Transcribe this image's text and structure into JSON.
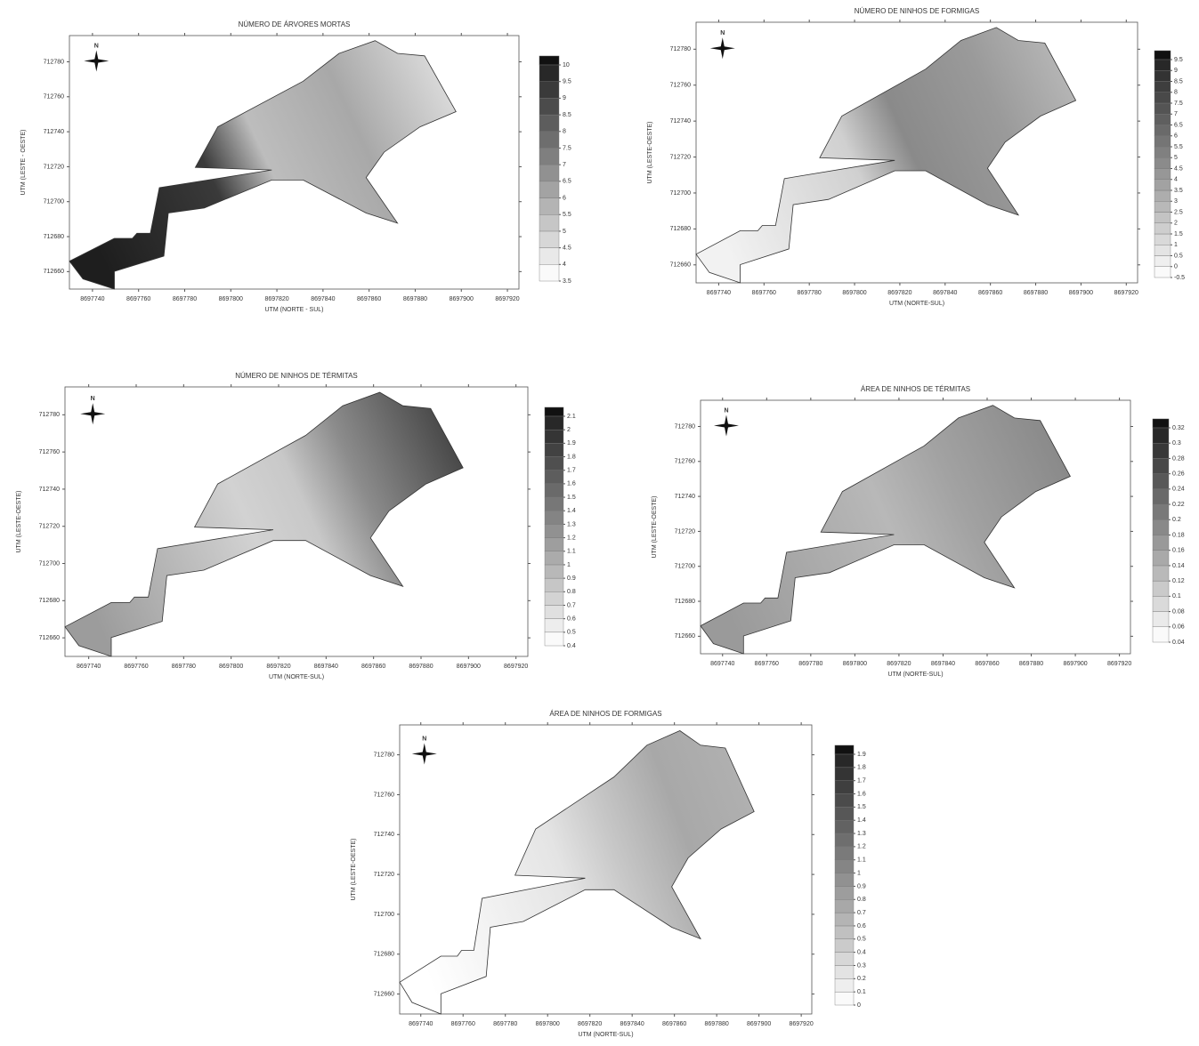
{
  "chart_data": [
    {
      "type": "contour",
      "title": "NÚMERO DE ÁRVORES MORTAS",
      "compass_label": "N",
      "x_label": "UTM (NORTE - SUL)",
      "y_label": "UTM (LESTE - OESTE)",
      "xlim": [
        8697730,
        8697925
      ],
      "ylim": [
        712650,
        712795
      ],
      "xticks": [
        8697740,
        8697760,
        8697780,
        8697800,
        8697820,
        8697840,
        8697860,
        8697880,
        8697900,
        8697920
      ],
      "yticks": [
        712660,
        712680,
        712700,
        712720,
        712740,
        712760,
        712780
      ],
      "levels": [
        3.5,
        4,
        4.5,
        5,
        5.5,
        6,
        6.5,
        7,
        7.5,
        8,
        8.5,
        9,
        9.5,
        10
      ]
    },
    {
      "type": "contour",
      "title": "NÚMERO DE NINHOS DE FORMIGAS",
      "compass_label": "N",
      "x_label": "UTM (NORTE-SUL)",
      "y_label": "UTM (LESTE-OESTE)",
      "xlim": [
        8697730,
        8697925
      ],
      "ylim": [
        712650,
        712795
      ],
      "xticks": [
        8697740,
        8697760,
        8697780,
        8697800,
        8697820,
        8697840,
        8697860,
        8697880,
        8697900,
        8697920
      ],
      "yticks": [
        712660,
        712680,
        712700,
        712720,
        712740,
        712760,
        712780
      ],
      "levels": [
        -0.5,
        0,
        0.5,
        1,
        1.5,
        2,
        2.5,
        3,
        3.5,
        4,
        4.5,
        5,
        5.5,
        6,
        6.5,
        7,
        7.5,
        8,
        8.5,
        9,
        9.5
      ]
    },
    {
      "type": "contour",
      "title": "NÚMERO DE NINHOS DE TÉRMITAS",
      "compass_label": "N",
      "x_label": "UTM (NORTE-SUL)",
      "y_label": "UTM (LESTE-OESTE)",
      "xlim": [
        8697730,
        8697925
      ],
      "ylim": [
        712650,
        712795
      ],
      "xticks": [
        8697740,
        8697760,
        8697780,
        8697800,
        8697820,
        8697840,
        8697860,
        8697880,
        8697900,
        8697920
      ],
      "yticks": [
        712660,
        712680,
        712700,
        712720,
        712740,
        712760,
        712780
      ],
      "levels": [
        0.4,
        0.5,
        0.6,
        0.7,
        0.8,
        0.9,
        1,
        1.1,
        1.2,
        1.3,
        1.4,
        1.5,
        1.6,
        1.7,
        1.8,
        1.9,
        2,
        2.1
      ]
    },
    {
      "type": "contour",
      "title": "ÁREA DE NINHOS DE TÉRMITAS",
      "compass_label": "N",
      "x_label": "UTM (NORTE-SUL)",
      "y_label": "UTM (LESTE-OESTE)",
      "xlim": [
        8697730,
        8697925
      ],
      "ylim": [
        712650,
        712795
      ],
      "xticks": [
        8697740,
        8697760,
        8697780,
        8697800,
        8697820,
        8697840,
        8697860,
        8697880,
        8697900,
        8697920
      ],
      "yticks": [
        712660,
        712680,
        712700,
        712720,
        712740,
        712760,
        712780
      ],
      "levels": [
        0.04,
        0.06,
        0.08,
        0.1,
        0.12,
        0.14,
        0.16,
        0.18,
        0.2,
        0.22,
        0.24,
        0.26,
        0.28,
        0.3,
        0.32
      ]
    },
    {
      "type": "contour",
      "title": "ÁREA DE NINHOS DE FORMIGAS",
      "compass_label": "N",
      "x_label": "UTM (NORTE-SUL)",
      "y_label": "UTM (LESTE-OESTE)",
      "xlim": [
        8697730,
        8697925
      ],
      "ylim": [
        712650,
        712795
      ],
      "xticks": [
        8697740,
        8697760,
        8697780,
        8697800,
        8697820,
        8697840,
        8697860,
        8697880,
        8697900,
        8697920
      ],
      "yticks": [
        712660,
        712680,
        712700,
        712720,
        712740,
        712760,
        712780
      ],
      "levels": [
        0,
        0.1,
        0.2,
        0.3,
        0.4,
        0.5,
        0.6,
        0.7,
        0.8,
        0.9,
        1,
        1.1,
        1.2,
        1.3,
        1.4,
        1.5,
        1.6,
        1.7,
        1.8,
        1.9
      ]
    }
  ]
}
